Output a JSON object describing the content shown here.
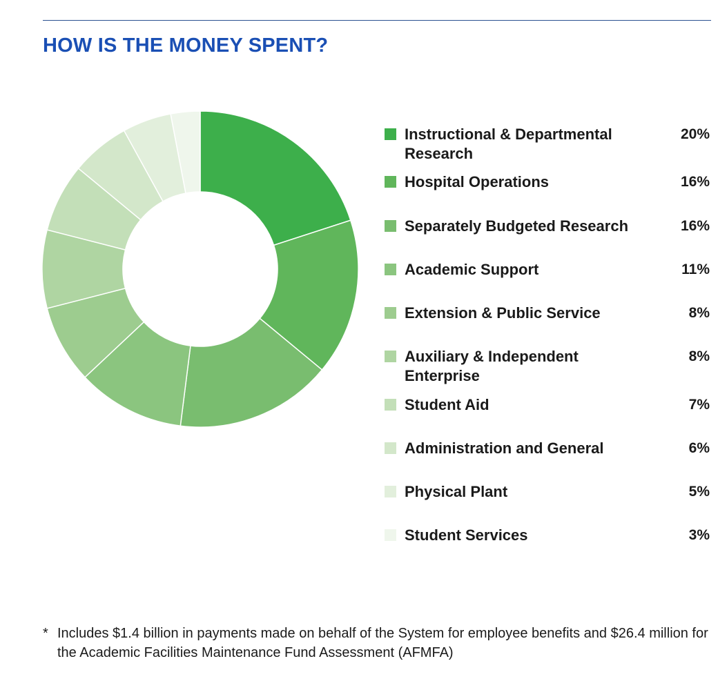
{
  "header": {
    "title": "HOW IS THE MONEY SPENT?"
  },
  "chart_data": {
    "type": "pie",
    "style": "donut",
    "title": "HOW IS THE MONEY SPENT?",
    "unit": "%",
    "legend_position": "right",
    "categories": [
      "Instructional & Departmental Research",
      "Hospital Operations",
      "Separately Budgeted Research",
      "Academic Support",
      "Extension & Public Service",
      "Auxiliary & Independent Enterprise",
      "Student Aid",
      "Administration and General",
      "Physical Plant",
      "Student Services"
    ],
    "values": [
      20,
      16,
      16,
      11,
      8,
      8,
      7,
      6,
      5,
      3
    ],
    "value_labels": [
      "20%",
      "16%",
      "16%",
      "11%",
      "8%",
      "8%",
      "7%",
      "6%",
      "5%",
      "3%"
    ],
    "colors": [
      "#3daf4b",
      "#60b65b",
      "#79bd6f",
      "#8bc57f",
      "#9dcc8f",
      "#afd5a2",
      "#c3dfb8",
      "#d3e7ca",
      "#e2efdc",
      "#eff6ec"
    ]
  },
  "footnote": {
    "marker": "*",
    "text": "Includes $1.4 billion in payments made on behalf of the System for employee benefits and $26.4 million for the Academic Facilities Maintenance Fund Assessment (AFMFA)"
  }
}
